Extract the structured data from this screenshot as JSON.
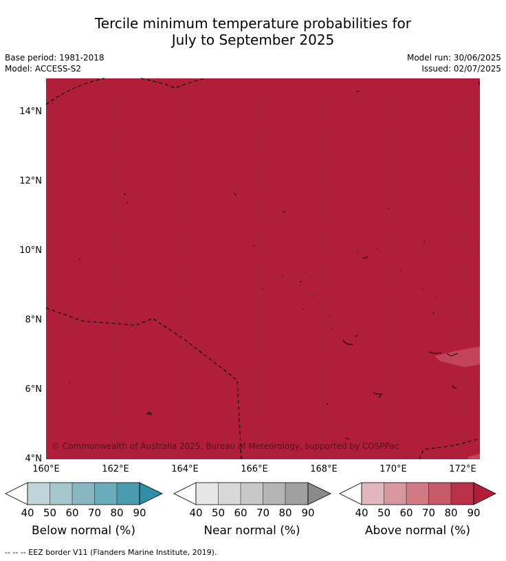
{
  "title": {
    "line1": "Tercile minimum temperature probabilities for",
    "line2": "July to September 2025"
  },
  "meta": {
    "base_period": "Base period: 1981-2018",
    "model": "Model: ACCESS-S2",
    "model_run": "Model run: 30/06/2025",
    "issued": "Issued: 02/07/2025"
  },
  "map": {
    "lat_labels": [
      "14°N",
      "12°N",
      "10°N",
      "8°N",
      "6°N",
      "4°N"
    ],
    "lon_labels": [
      "160°E",
      "162°E",
      "164°E",
      "166°E",
      "168°E",
      "170°E",
      "172°E"
    ],
    "fill_color": "#b11e3a",
    "patch_color": "#c3445a",
    "copyright": "© Commonwealth of Australia 2025, Bureau of Meteorology, supported by COSPPac"
  },
  "colorbars": [
    {
      "label": "Below normal (%)",
      "ticks": [
        "40",
        "50",
        "60",
        "70",
        "80",
        "90"
      ],
      "colors": [
        "#ffffff",
        "#bfd5da",
        "#a5c7cd",
        "#88b7c2",
        "#6aacb9",
        "#4a9baf",
        "#2f8ea6"
      ]
    },
    {
      "label": "Near normal (%)",
      "ticks": [
        "40",
        "50",
        "60",
        "70",
        "80",
        "90"
      ],
      "colors": [
        "#ffffff",
        "#e6e6e6",
        "#d8d8d8",
        "#c8c8c8",
        "#b4b4b4",
        "#a0a0a0",
        "#8a8a8a"
      ]
    },
    {
      "label": "Above normal (%)",
      "ticks": [
        "40",
        "50",
        "60",
        "70",
        "80",
        "90"
      ],
      "colors": [
        "#ffffff",
        "#e2b7bd",
        "#d7979f",
        "#d17a84",
        "#c75a68",
        "#ba3249",
        "#b11e3a"
      ]
    }
  ],
  "footer": "--  --  -- EEZ border V11 (Flanders Marine Institute, 2019)."
}
